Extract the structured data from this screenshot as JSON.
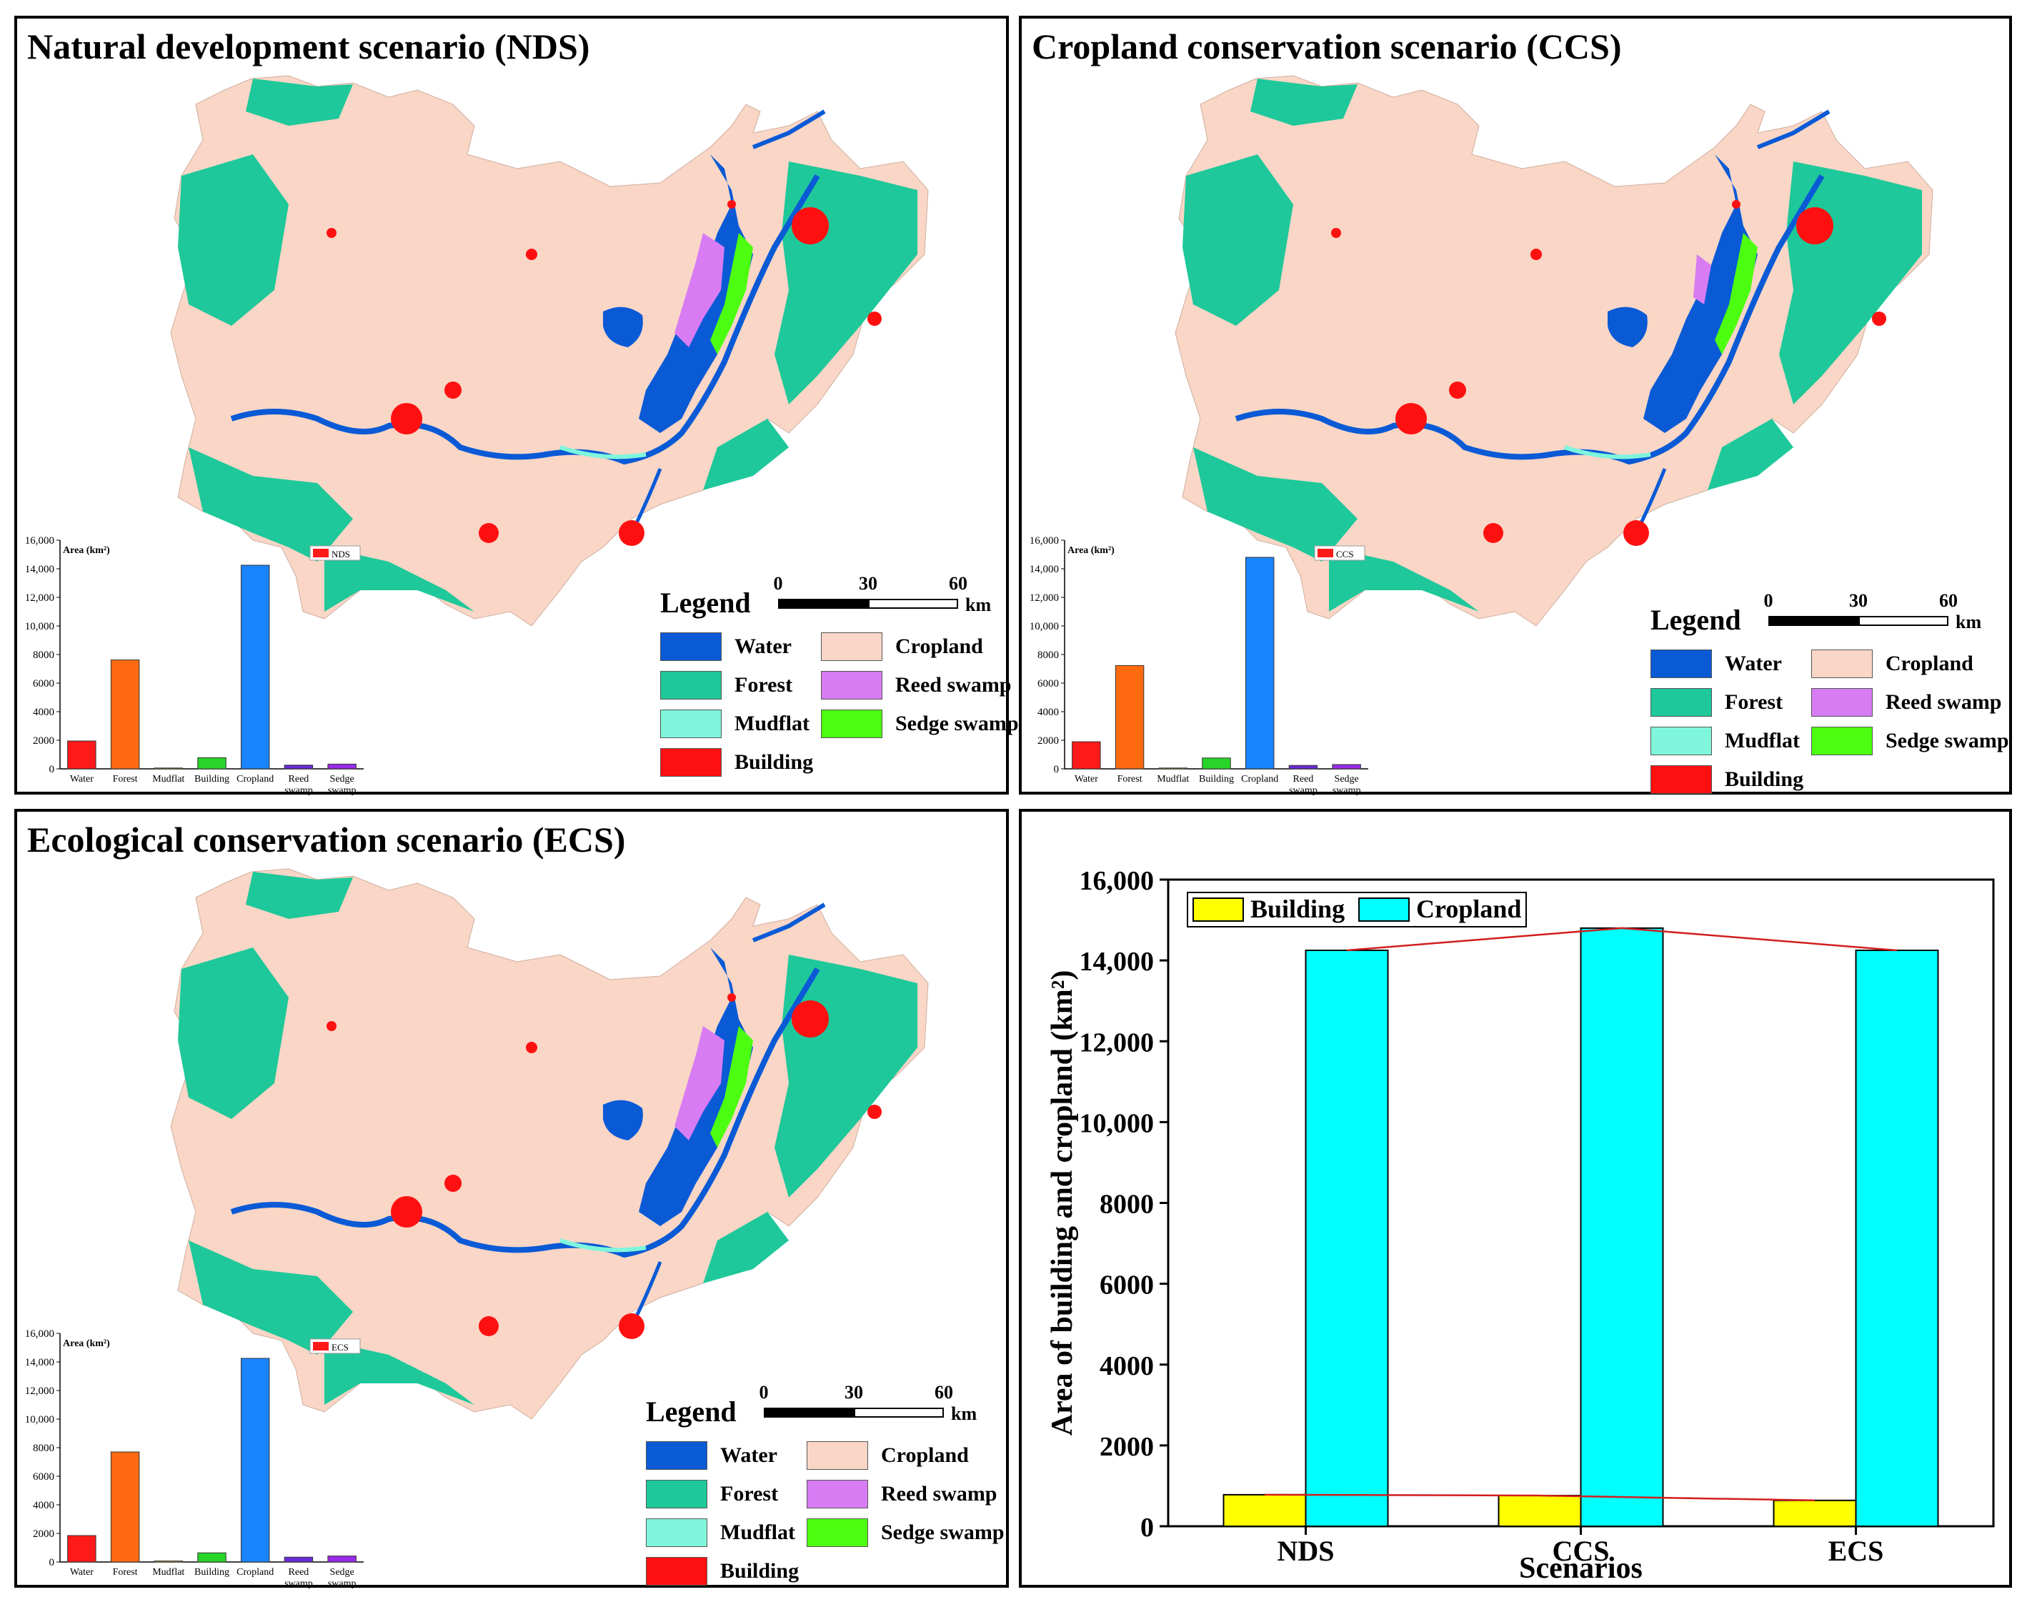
{
  "colors": {
    "water": "#0a5ad6",
    "forest": "#1ec89a",
    "mudflat": "#7ff6dc",
    "building": "#ff1010",
    "cropland": "#f9d6c6",
    "reed": "#d77cf2",
    "sedge": "#4cff10",
    "bar_water": "#ff1a1a",
    "bar_forest": "#ff6a10",
    "bar_mudflat": "#f0d040",
    "bar_building": "#28d428",
    "bar_cropland": "#1a84ff",
    "bar_reed": "#6a2ad8",
    "bar_sedge": "#9a2ae8",
    "cmp_building": "#ffff00",
    "cmp_cropland": "#00ffff",
    "trend_line": "#d21e1e"
  },
  "legend": {
    "title": "Legend",
    "items": {
      "water": "Water",
      "forest": "Forest",
      "mudflat": "Mudflat",
      "building": "Building",
      "cropland": "Cropland",
      "reed": "Reed swamp",
      "sedge": "Sedge swamp"
    }
  },
  "scale": {
    "ticks": [
      "0",
      "30",
      "60"
    ],
    "unit": "km"
  },
  "panels": {
    "nds": {
      "title": "Natural development scenario (NDS)"
    },
    "ccs": {
      "title": "Cropland conservation scenario (CCS)"
    },
    "ecs": {
      "title": "Ecological conservation scenario (ECS)"
    }
  },
  "chart_data": [
    {
      "id": "nds-inset",
      "type": "bar",
      "title": "",
      "ylabel": "Area (km²)",
      "legend": "NDS",
      "categories": [
        "Water",
        "Forest",
        "Mudflat",
        "Building",
        "Cropland",
        "Reed swamp",
        "Sedge swamp"
      ],
      "values": [
        1950,
        7620,
        60,
        780,
        14250,
        260,
        330
      ],
      "ylim": [
        0,
        16000
      ],
      "yticks": [
        "0",
        "2000",
        "4000",
        "6000",
        "8000",
        "10,000",
        "12,000",
        "14,000",
        "16,000"
      ]
    },
    {
      "id": "ccs-inset",
      "type": "bar",
      "title": "",
      "ylabel": "Area (km²)",
      "legend": "CCS",
      "categories": [
        "Water",
        "Forest",
        "Mudflat",
        "Building",
        "Cropland",
        "Reed swamp",
        "Sedge swamp"
      ],
      "values": [
        1900,
        7230,
        60,
        760,
        14800,
        240,
        300
      ],
      "ylim": [
        0,
        16000
      ],
      "yticks": [
        "0",
        "2000",
        "4000",
        "6000",
        "8000",
        "10,000",
        "12,000",
        "14,000",
        "16,000"
      ]
    },
    {
      "id": "ecs-inset",
      "type": "bar",
      "title": "",
      "ylabel": "Area (km²)",
      "legend": "ECS",
      "categories": [
        "Water",
        "Forest",
        "Mudflat",
        "Building",
        "Cropland",
        "Reed swamp",
        "Sedge swamp"
      ],
      "values": [
        1850,
        7700,
        70,
        640,
        14250,
        340,
        420
      ],
      "ylim": [
        0,
        16000
      ],
      "yticks": [
        "0",
        "2000",
        "4000",
        "6000",
        "8000",
        "10,000",
        "12,000",
        "14,000",
        "16,000"
      ]
    },
    {
      "id": "comparison",
      "type": "bar",
      "title": "",
      "xlabel": "Scenarios",
      "ylabel": "Area of building and cropland (km²)",
      "categories": [
        "NDS",
        "CCS",
        "ECS"
      ],
      "series": [
        {
          "name": "Building",
          "values": [
            780,
            760,
            640
          ]
        },
        {
          "name": "Cropland",
          "values": [
            14250,
            14800,
            14250
          ]
        }
      ],
      "ylim": [
        0,
        16000
      ],
      "yticks": [
        "0",
        "2000",
        "4000",
        "6000",
        "8000",
        "10,000",
        "12,000",
        "14,000",
        "16,000"
      ],
      "legend_position": "top-left"
    }
  ]
}
